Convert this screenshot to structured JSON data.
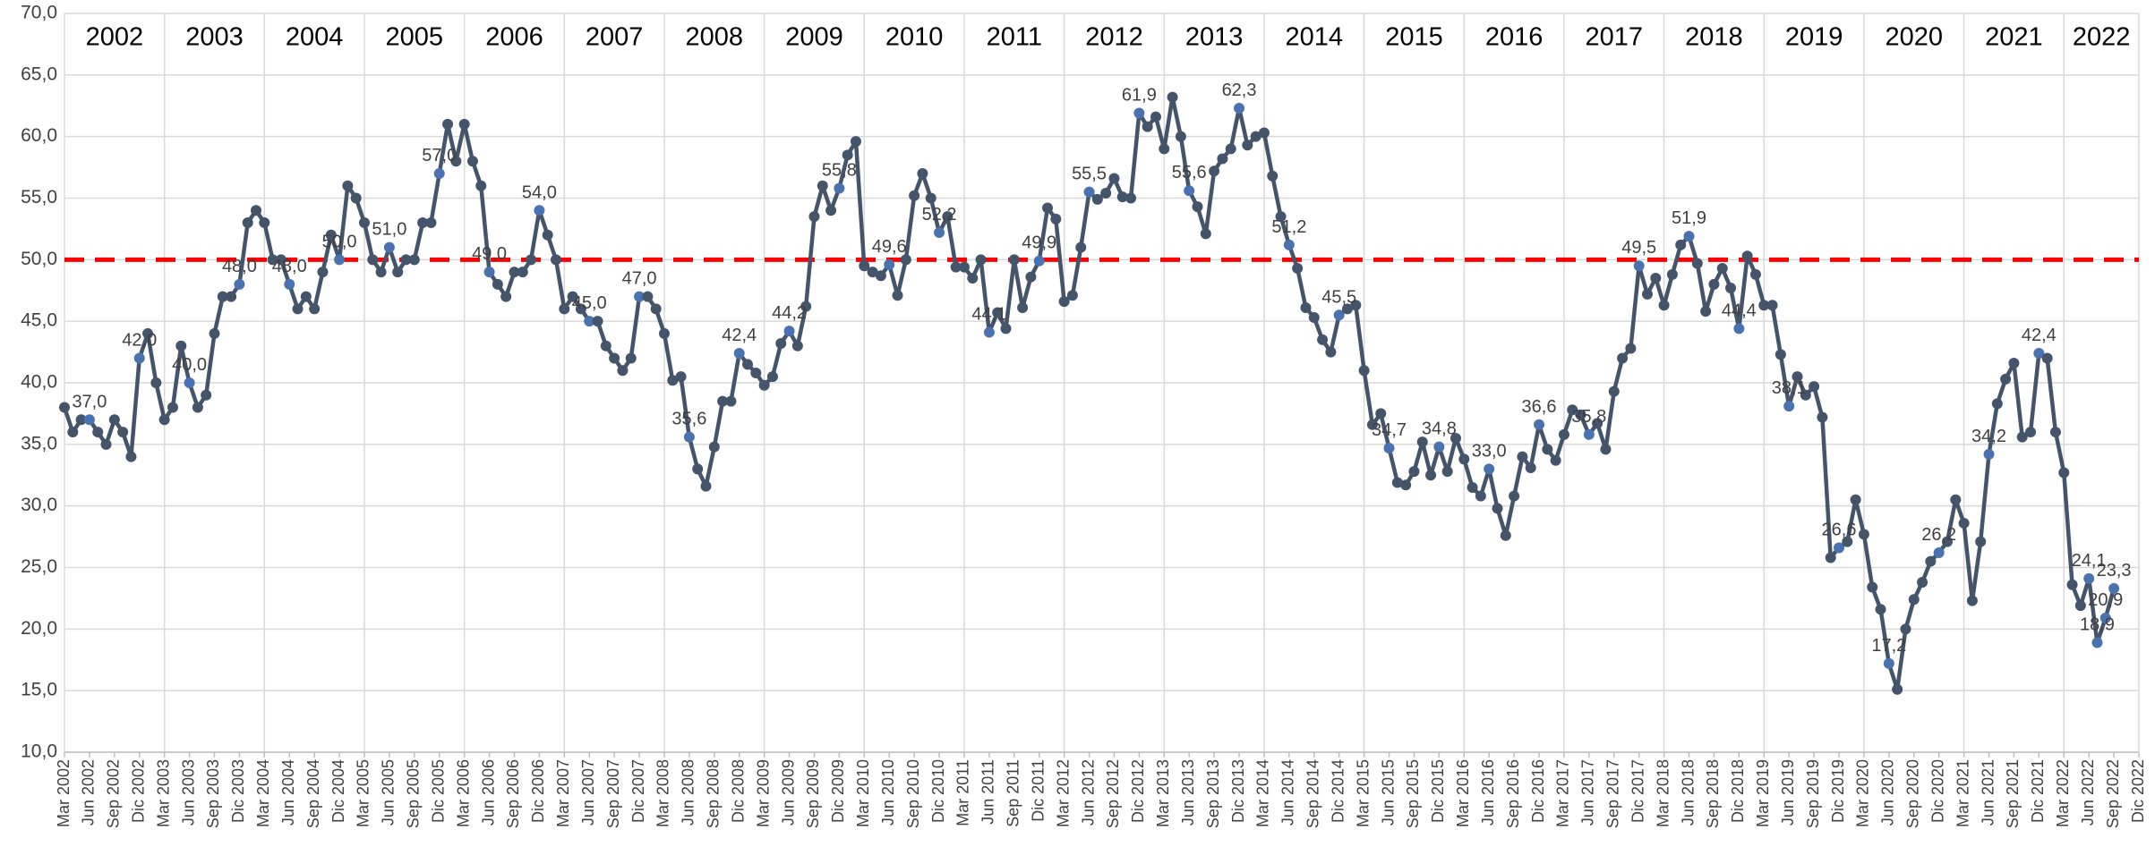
{
  "chart_data": {
    "type": "line",
    "year_labels": [
      "2002",
      "2003",
      "2004",
      "2005",
      "2006",
      "2007",
      "2008",
      "2009",
      "2010",
      "2011",
      "2012",
      "2013",
      "2014",
      "2015",
      "2016",
      "2017",
      "2018",
      "2019",
      "2020",
      "2021",
      "2022"
    ],
    "categories": [
      "Mar 2002",
      null,
      null,
      "Jun 2002",
      null,
      null,
      "Sep 2002",
      null,
      null,
      "Dic 2002",
      null,
      null,
      "Mar 2003",
      null,
      null,
      "Jun 2003",
      null,
      null,
      "Sep 2003",
      null,
      null,
      "Dic 2003",
      null,
      null,
      "Mar 2004",
      null,
      null,
      "Jun 2004",
      null,
      null,
      "Sep 2004",
      null,
      null,
      "Dic 2004",
      null,
      null,
      "Mar 2005",
      null,
      null,
      "Jun 2005",
      null,
      null,
      "Sep 2005",
      null,
      null,
      "Dic 2005",
      null,
      null,
      "Mar 2006",
      null,
      null,
      "Jun 2006",
      null,
      null,
      "Sep 2006",
      null,
      null,
      "Dic 2006",
      null,
      null,
      "Mar 2007",
      null,
      null,
      "Jun 2007",
      null,
      null,
      "Sep 2007",
      null,
      null,
      "Dic 2007",
      null,
      null,
      "Mar 2008",
      null,
      null,
      "Jun 2008",
      null,
      null,
      "Sep 2008",
      null,
      null,
      "Dic 2008",
      null,
      null,
      "Mar 2009",
      null,
      null,
      "Jun 2009",
      null,
      null,
      "Sep 2009",
      null,
      null,
      "Dic 2009",
      null,
      null,
      "Mar 2010",
      null,
      null,
      "Jun 2010",
      null,
      null,
      "Sep 2010",
      null,
      null,
      "Dic 2010",
      null,
      null,
      "Mar 2011",
      null,
      null,
      "Jun 2011",
      null,
      null,
      "Sep 2011",
      null,
      null,
      "Dic 2011",
      null,
      null,
      "Mar 2012",
      null,
      null,
      "Jun 2012",
      null,
      null,
      "Sep 2012",
      null,
      null,
      "Dic 2012",
      null,
      null,
      "Mar 2013",
      null,
      null,
      "Jun 2013",
      null,
      null,
      "Sep 2013",
      null,
      null,
      "Dic 2013",
      null,
      null,
      "Mar 2014",
      null,
      null,
      "Jun 2014",
      null,
      null,
      "Sep 2014",
      null,
      null,
      "Dic 2014",
      null,
      null,
      "Mar 2015",
      null,
      null,
      "Jun 2015",
      null,
      null,
      "Sep 2015",
      null,
      null,
      "Dic 2015",
      null,
      null,
      "Mar 2016",
      null,
      null,
      "Jun 2016",
      null,
      null,
      "Sep 2016",
      null,
      null,
      "Dic 2016",
      null,
      null,
      "Mar 2017",
      null,
      null,
      "Jun 2017",
      null,
      null,
      "Sep 2017",
      null,
      null,
      "Dic 2017",
      null,
      null,
      "Mar 2018",
      null,
      null,
      "Jun 2018",
      null,
      null,
      "Sep 2018",
      null,
      null,
      "Dic 2018",
      null,
      null,
      "Mar 2019",
      null,
      null,
      "Jun 2019",
      null,
      null,
      "Sep 2019",
      null,
      null,
      "Dic 2019",
      null,
      null,
      "Mar 2020",
      null,
      null,
      "Jun 2020",
      null,
      null,
      "Sep 2020",
      null,
      null,
      "Dic 2020",
      null,
      null,
      "Mar 2021",
      null,
      null,
      "Jun 2021",
      null,
      null,
      "Sep 2021",
      null,
      null,
      "Dic 2021",
      null,
      null,
      "Mar 2022",
      null,
      null,
      "Jun 2022",
      null,
      null,
      "Sep 2022",
      null,
      null,
      "Dic 2022"
    ],
    "series": [
      {
        "color": "#44546a",
        "highlight_color": "#4a72b0",
        "values": [
          38,
          36,
          37,
          37,
          36,
          35,
          37,
          36,
          34,
          42,
          44,
          40,
          37,
          38,
          43,
          40,
          38,
          39,
          44,
          47,
          47,
          48,
          53,
          54,
          53,
          50,
          50,
          48,
          46,
          47,
          46,
          49,
          52,
          50,
          56,
          55,
          53,
          50,
          49,
          51,
          49,
          50,
          50,
          53,
          53,
          57,
          61,
          58,
          61,
          58,
          56,
          49,
          48,
          47,
          49,
          49,
          50,
          54,
          52,
          50,
          46,
          47,
          46,
          45,
          45,
          43,
          42,
          41,
          42,
          47,
          47,
          46,
          44,
          40.2,
          40.5,
          35.6,
          33,
          31.6,
          34.8,
          38.5,
          38.5,
          42.4,
          41.5,
          40.8,
          39.8,
          40.5,
          43.2,
          44.2,
          43,
          46.2,
          53.5,
          56,
          54,
          55.8,
          58.5,
          59.6,
          49.5,
          49,
          48.7,
          49.6,
          47.1,
          50,
          55.2,
          57,
          55,
          52.2,
          53.5,
          49.4,
          49.4,
          48.5,
          50,
          44.1,
          45.7,
          44.4,
          50,
          46.1,
          48.6,
          49.9,
          54.2,
          53.3,
          46.6,
          47.1,
          51,
          55.5,
          54.9,
          55.4,
          56.6,
          55.1,
          55,
          61.9,
          60.8,
          61.6,
          59,
          63.2,
          60,
          55.6,
          54.3,
          52.1,
          57.2,
          58.2,
          59,
          62.3,
          59.3,
          60,
          60.3,
          56.8,
          53.5,
          51.2,
          49.3,
          46.1,
          45.3,
          43.5,
          42.5,
          45.5,
          46,
          46.3,
          41,
          36.6,
          37.5,
          34.7,
          31.9,
          31.7,
          32.8,
          35.2,
          32.5,
          34.8,
          32.8,
          35.5,
          33.8,
          31.5,
          30.8,
          33,
          29.8,
          27.6,
          30.8,
          34,
          33.1,
          36.6,
          34.6,
          33.7,
          35.8,
          37.8,
          37.4,
          35.8,
          36.7,
          34.6,
          39.3,
          42,
          42.8,
          49.5,
          47.2,
          48.5,
          46.3,
          48.8,
          51.2,
          51.9,
          49.7,
          45.8,
          48,
          49.3,
          47.7,
          44.4,
          50.3,
          48.8,
          46.3,
          46.3,
          42.3,
          38.1,
          40.5,
          39,
          39.7,
          37.2,
          25.8,
          26.6,
          27.1,
          30.5,
          27.7,
          23.4,
          21.6,
          17.2,
          15.1,
          20,
          22.4,
          23.8,
          25.5,
          26.2,
          27.1,
          30.5,
          28.6,
          22.3,
          27.1,
          34.2,
          38.3,
          40.3,
          41.6,
          35.6,
          36,
          42.4,
          42,
          36,
          32.7,
          23.6,
          21.9,
          24.1,
          18.9,
          20.9,
          23.3,
          null,
          null,
          null
        ],
        "value_labels": [
          null,
          null,
          null,
          "37,0",
          null,
          null,
          null,
          null,
          null,
          "42,0",
          null,
          null,
          null,
          null,
          null,
          "40,0",
          null,
          null,
          null,
          null,
          null,
          "48,0",
          null,
          null,
          null,
          null,
          null,
          "48,0",
          null,
          null,
          null,
          null,
          null,
          "50,0",
          null,
          null,
          null,
          null,
          null,
          "51,0",
          null,
          null,
          null,
          null,
          null,
          "57,0",
          null,
          null,
          null,
          null,
          null,
          "49,0",
          null,
          null,
          null,
          null,
          null,
          "54,0",
          null,
          null,
          null,
          null,
          null,
          "45,0",
          null,
          null,
          null,
          null,
          null,
          "47,0",
          null,
          null,
          null,
          null,
          null,
          "35,6",
          null,
          null,
          null,
          null,
          null,
          "42,4",
          null,
          null,
          null,
          null,
          null,
          "44,2",
          null,
          null,
          null,
          null,
          null,
          "55,8",
          null,
          null,
          null,
          null,
          null,
          "49,6",
          null,
          null,
          null,
          null,
          null,
          "52,2",
          null,
          null,
          null,
          null,
          null,
          "44,1",
          null,
          null,
          null,
          null,
          null,
          "49,9",
          null,
          null,
          null,
          null,
          null,
          "55,5",
          null,
          null,
          null,
          null,
          null,
          "61,9",
          null,
          null,
          null,
          null,
          null,
          "55,6",
          null,
          null,
          null,
          null,
          null,
          "62,3",
          null,
          null,
          null,
          null,
          null,
          "51,2",
          null,
          null,
          null,
          null,
          null,
          "45,5",
          null,
          null,
          null,
          null,
          null,
          "34,7",
          null,
          null,
          null,
          null,
          null,
          "34,8",
          null,
          null,
          null,
          null,
          null,
          "33,0",
          null,
          null,
          null,
          null,
          null,
          "36,6",
          null,
          null,
          null,
          null,
          null,
          "35,8",
          null,
          null,
          null,
          null,
          null,
          "49,5",
          null,
          null,
          null,
          null,
          null,
          "51,9",
          null,
          null,
          null,
          null,
          null,
          "44,4",
          null,
          null,
          null,
          null,
          null,
          "38,1",
          null,
          null,
          null,
          null,
          null,
          "26,6",
          null,
          null,
          null,
          null,
          null,
          "17,2",
          null,
          null,
          null,
          null,
          null,
          "26,2",
          null,
          null,
          null,
          null,
          null,
          "34,2",
          null,
          null,
          null,
          null,
          null,
          "42,4",
          null,
          null,
          null,
          null,
          null,
          "24,1",
          "18,9",
          "20,9",
          "23,3",
          null,
          null,
          null
        ]
      }
    ],
    "ylim": [
      10,
      70
    ],
    "yticks": [
      {
        "value": 10,
        "label": "10,0"
      },
      {
        "value": 15,
        "label": "15,0"
      },
      {
        "value": 20,
        "label": "20,0"
      },
      {
        "value": 25,
        "label": "25,0"
      },
      {
        "value": 30,
        "label": "30,0"
      },
      {
        "value": 35,
        "label": "35,0"
      },
      {
        "value": 40,
        "label": "40,0"
      },
      {
        "value": 45,
        "label": "45,0"
      },
      {
        "value": 50,
        "label": "50,0"
      },
      {
        "value": 55,
        "label": "55,0"
      },
      {
        "value": 60,
        "label": "60,0"
      },
      {
        "value": 65,
        "label": "65,0"
      },
      {
        "value": 70,
        "label": "70,0"
      }
    ],
    "grid": true,
    "reference_line": {
      "value": 50,
      "color": "#ff0000"
    }
  }
}
